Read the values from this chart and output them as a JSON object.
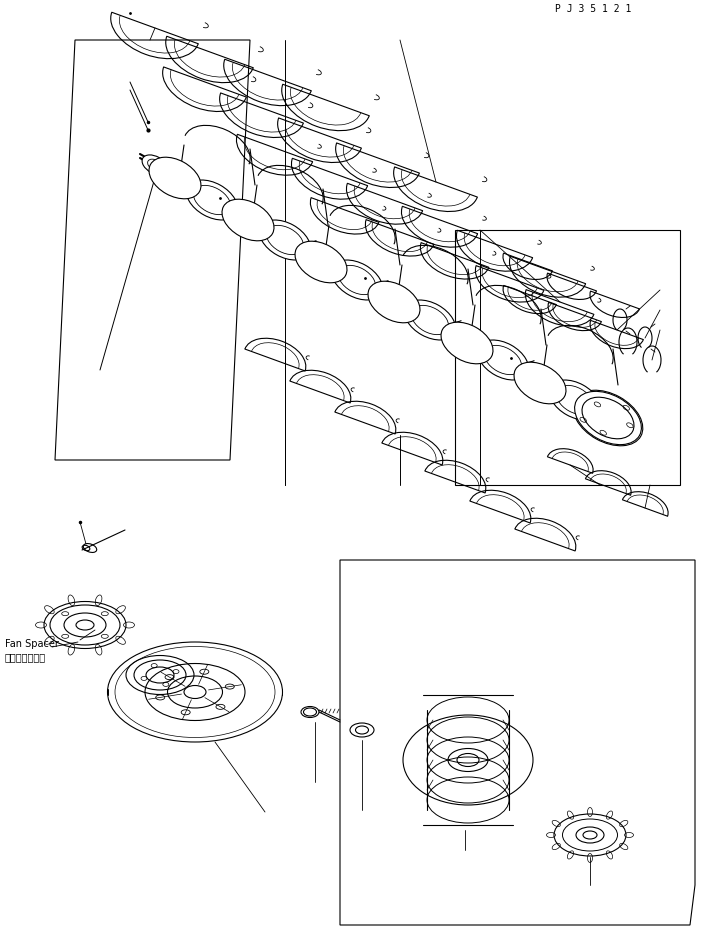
{
  "figure_width": 7.02,
  "figure_height": 9.3,
  "dpi": 100,
  "bg_color": "#ffffff",
  "line_color": "#000000",
  "line_width": 0.8,
  "label_japanese": "ファンスペーサ",
  "label_english": "Fan Spacer",
  "part_number": "P J 3 5 1 2 1",
  "label_font_size": 7,
  "part_font_size": 7
}
